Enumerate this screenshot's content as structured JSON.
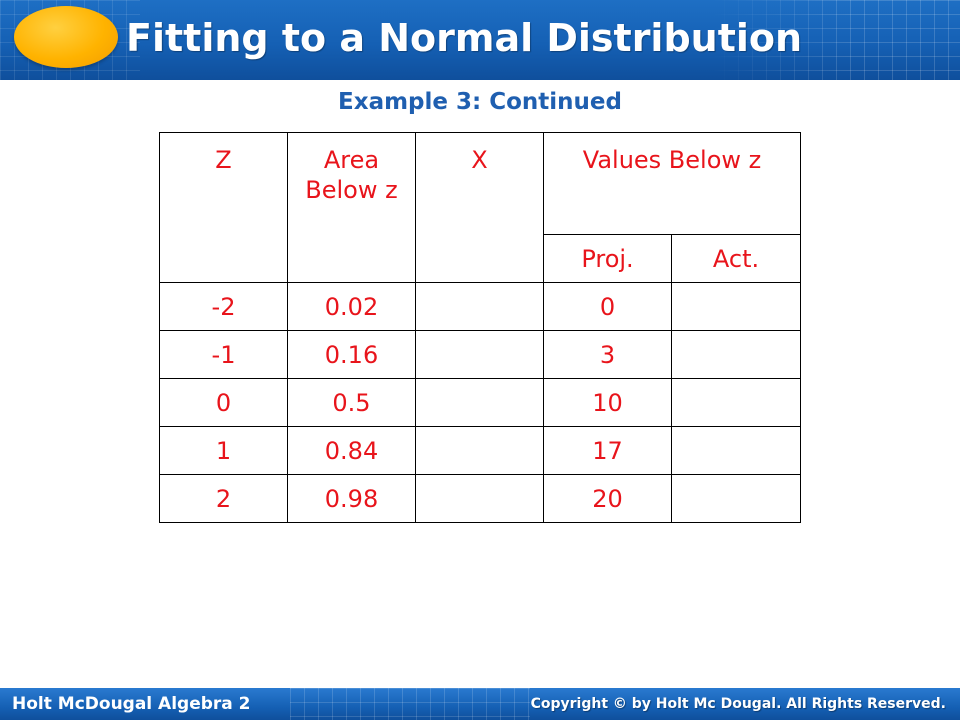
{
  "header": {
    "title": "Fitting to a Normal Distribution",
    "background_color": "#1560b4",
    "logo_color": "#ffb300"
  },
  "subtitle": "Example 3: Continued",
  "table": {
    "text_color": "#e8141b",
    "headers": {
      "z": "Z",
      "area_below_z": "Area Below z",
      "x": "X",
      "values_below_z": "Values Below z",
      "proj": "Proj.",
      "act": "Act."
    },
    "rows": [
      {
        "z": "-2",
        "area": "0.02",
        "x": "",
        "proj": "0",
        "act": ""
      },
      {
        "z": "-1",
        "area": "0.16",
        "x": "",
        "proj": "3",
        "act": ""
      },
      {
        "z": "0",
        "area": "0.5",
        "x": "",
        "proj": "10",
        "act": ""
      },
      {
        "z": "1",
        "area": "0.84",
        "x": "",
        "proj": "17",
        "act": ""
      },
      {
        "z": "2",
        "area": "0.98",
        "x": "",
        "proj": "20",
        "act": ""
      }
    ]
  },
  "footer": {
    "left": "Holt McDougal Algebra 2",
    "right": "Copyright © by Holt Mc Dougal. All Rights Reserved."
  }
}
